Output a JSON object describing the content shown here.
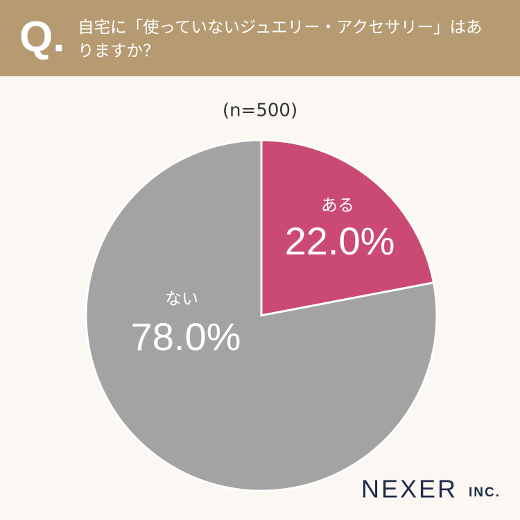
{
  "header": {
    "badge": "Q."
  },
  "chart_data": {
    "type": "pie",
    "title": "自宅に「使っていないジュエリー・アクセサリー」はありますか？",
    "subtitle": "(n=500)",
    "categories": [
      "ある",
      "ない"
    ],
    "values": [
      22.0,
      78.0
    ],
    "value_labels": [
      "22.0%",
      "78.0%"
    ],
    "colors": [
      "#cb4a73",
      "#a3a3a3"
    ]
  },
  "footer": {
    "brand": "NEXER",
    "suffix": "INC."
  }
}
